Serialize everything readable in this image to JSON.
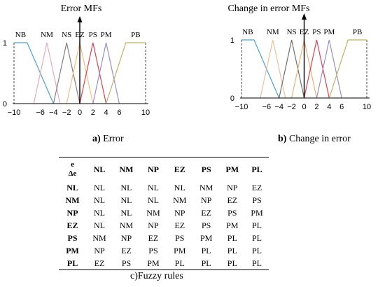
{
  "chart_data": [
    {
      "type": "line",
      "title": "Error MFs",
      "xlabel": "",
      "ylabel": "",
      "xlim": [
        -10,
        10
      ],
      "ylim": [
        0,
        1
      ],
      "x_ticks": [
        -10,
        -6,
        -4,
        -2,
        0,
        2,
        4,
        6,
        10
      ],
      "x_tick_labels": [
        "−10",
        "−6",
        "−4",
        "−2",
        "0",
        "2",
        "4",
        "6",
        "10"
      ],
      "y_ticks": [
        0,
        1
      ],
      "y_tick_labels": [
        "0",
        "1"
      ],
      "sets": [
        {
          "name": "NB",
          "points": [
            [
              -10,
              1
            ],
            [
              -8,
              1
            ],
            [
              -4,
              0
            ]
          ],
          "color": "#4a9fd8"
        },
        {
          "name": "NM",
          "points": [
            [
              -7,
              0
            ],
            [
              -5,
              1
            ],
            [
              -3,
              0
            ]
          ],
          "color": "#e8a9b8"
        },
        {
          "name": "NS",
          "points": [
            [
              -4,
              0
            ],
            [
              -2,
              1
            ],
            [
              0,
              0
            ]
          ],
          "color": "#808080"
        },
        {
          "name": "EZ",
          "points": [
            [
              -2,
              0
            ],
            [
              0,
              1
            ],
            [
              2,
              0
            ]
          ],
          "color": "#f0c080"
        },
        {
          "name": "PS",
          "points": [
            [
              0,
              0
            ],
            [
              2,
              1
            ],
            [
              4,
              0
            ]
          ],
          "color": "#e04050"
        },
        {
          "name": "PM",
          "points": [
            [
              2,
              0
            ],
            [
              4,
              1
            ],
            [
              6,
              0
            ]
          ],
          "color": "#9a8cc8"
        },
        {
          "name": "PB",
          "points": [
            [
              4,
              0
            ],
            [
              7,
              1
            ],
            [
              10,
              1
            ]
          ],
          "color": "#c0b060"
        }
      ]
    },
    {
      "type": "line",
      "title": "Change in error MFs",
      "xlabel": "",
      "ylabel": "",
      "xlim": [
        -10,
        10
      ],
      "ylim": [
        0,
        1
      ],
      "x_ticks": [
        -10,
        -6,
        -4,
        -2,
        0,
        2,
        4,
        6,
        10
      ],
      "x_tick_labels": [
        "−10",
        "−6",
        "−4",
        "−2",
        "0",
        "2",
        "4",
        "6",
        "10"
      ],
      "y_ticks": [
        0,
        1
      ],
      "y_tick_labels": [
        "0",
        "1"
      ],
      "sets": [
        {
          "name": "NB",
          "points": [
            [
              -10,
              1
            ],
            [
              -8,
              1
            ],
            [
              -4,
              0
            ]
          ],
          "color": "#4a9fd8"
        },
        {
          "name": "NM",
          "points": [
            [
              -7,
              0
            ],
            [
              -5,
              1
            ],
            [
              -3,
              0
            ]
          ],
          "color": "#e8c0a0"
        },
        {
          "name": "NS",
          "points": [
            [
              -4,
              0
            ],
            [
              -2,
              1
            ],
            [
              0,
              0
            ]
          ],
          "color": "#707070"
        },
        {
          "name": "EZ",
          "points": [
            [
              -2,
              0
            ],
            [
              0,
              1
            ],
            [
              2,
              0
            ]
          ],
          "color": "#f0b070"
        },
        {
          "name": "PS",
          "points": [
            [
              0,
              0
            ],
            [
              2,
              1
            ],
            [
              4,
              0
            ]
          ],
          "color": "#e04050"
        },
        {
          "name": "PM",
          "points": [
            [
              2,
              0
            ],
            [
              4,
              1
            ],
            [
              6,
              0
            ]
          ],
          "color": "#9a8cc8"
        },
        {
          "name": "PB",
          "points": [
            [
              4,
              0
            ],
            [
              7,
              1
            ],
            [
              10,
              1
            ]
          ],
          "color": "#c0b060"
        }
      ]
    }
  ],
  "captions": {
    "a_letter": "a)",
    "a_text": "Error",
    "b_letter": "b)",
    "b_text": "Change in error",
    "c_text": "c)Fuzzy rules"
  },
  "rules_table": {
    "corner_top": "e",
    "corner_bottom": "Δe",
    "columns": [
      "NL",
      "NM",
      "NP",
      "EZ",
      "PS",
      "PM",
      "PL"
    ],
    "rows": [
      {
        "label": "NL",
        "cells": [
          "NL",
          "NL",
          "NL",
          "NL",
          "NM",
          "NP",
          "EZ"
        ]
      },
      {
        "label": "NM",
        "cells": [
          "NL",
          "NL",
          "NL",
          "NM",
          "NP",
          "EZ",
          "PS"
        ]
      },
      {
        "label": "NP",
        "cells": [
          "NL",
          "NL",
          "NM",
          "NP",
          "EZ",
          "PS",
          "PM"
        ]
      },
      {
        "label": "EZ",
        "cells": [
          "NL",
          "NM",
          "NP",
          "EZ",
          "PS",
          "PM",
          "PL"
        ]
      },
      {
        "label": "PS",
        "cells": [
          "NM",
          "NP",
          "EZ",
          "PS",
          "PM",
          "PL",
          "PL"
        ]
      },
      {
        "label": "PM",
        "cells": [
          "NP",
          "EZ",
          "PS",
          "PM",
          "PL",
          "PL",
          "PL"
        ]
      },
      {
        "label": "PL",
        "cells": [
          "EZ",
          "PS",
          "PM",
          "PL",
          "PL",
          "PL",
          "PL"
        ]
      }
    ]
  }
}
